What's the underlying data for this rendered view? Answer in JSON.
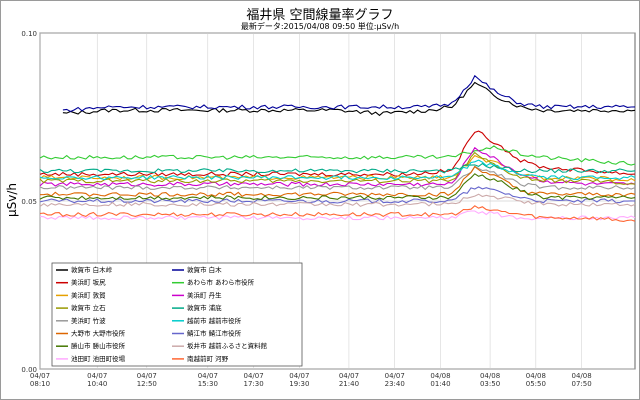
{
  "page": {
    "title": "福井県 空間線量率グラフ",
    "subtitle": "最新データ:2015/04/08 09:50 単位:μSv/h"
  },
  "chart_data": {
    "type": "line",
    "title": "福井県 空間線量率グラフ",
    "subtitle": "最新データ:2015/04/08 09:50 単位:μSv/h",
    "ylabel": "μSv/h",
    "xlabel": "",
    "ylim": [
      0,
      0.1
    ],
    "xlim_hours": [
      0,
      26
    ],
    "y_ticks": [
      "0.00",
      "0.05",
      "0.10"
    ],
    "x_ticks": [
      {
        "date": "04/07",
        "time": "08:10",
        "h": 0
      },
      {
        "date": "04/07",
        "time": "10:40",
        "h": 2.5
      },
      {
        "date": "04/07",
        "time": "12:50",
        "h": 4.667
      },
      {
        "date": "04/07",
        "time": "15:30",
        "h": 7.333
      },
      {
        "date": "04/07",
        "time": "17:30",
        "h": 9.333
      },
      {
        "date": "04/07",
        "time": "19:30",
        "h": 11.333
      },
      {
        "date": "04/07",
        "time": "21:40",
        "h": 13.5
      },
      {
        "date": "04/07",
        "time": "23:40",
        "h": 15.5
      },
      {
        "date": "04/08",
        "time": "01:40",
        "h": 17.5
      },
      {
        "date": "04/08",
        "time": "03:50",
        "h": 19.667
      },
      {
        "date": "04/08",
        "time": "05:50",
        "h": 21.667
      },
      {
        "date": "04/08",
        "time": "07:50",
        "h": 23.667
      }
    ],
    "grid": true,
    "legend_position": "bottom-left",
    "series": [
      {
        "name": "敦賀市 白木峠",
        "color": "#000000",
        "x": [
          1,
          3,
          5,
          7,
          9,
          11,
          13,
          15,
          17,
          18,
          19,
          20,
          21,
          22,
          24,
          26
        ],
        "y": [
          0.076,
          0.077,
          0.077,
          0.077,
          0.077,
          0.077,
          0.077,
          0.076,
          0.077,
          0.078,
          0.085,
          0.081,
          0.078,
          0.077,
          0.077,
          0.077
        ]
      },
      {
        "name": "敦賀市 白木",
        "color": "#000099",
        "x": [
          1,
          3,
          5,
          7,
          9,
          11,
          13,
          15,
          17,
          18,
          19,
          20,
          21,
          22,
          24,
          26
        ],
        "y": [
          0.077,
          0.078,
          0.078,
          0.078,
          0.078,
          0.078,
          0.078,
          0.078,
          0.078,
          0.079,
          0.087,
          0.082,
          0.079,
          0.078,
          0.078,
          0.078
        ]
      },
      {
        "name": "美浜町 坂尻",
        "color": "#cc0000",
        "x": [
          0,
          4,
          8,
          12,
          16,
          18,
          19,
          20,
          21,
          22,
          24,
          26
        ],
        "y": [
          0.058,
          0.058,
          0.058,
          0.058,
          0.058,
          0.059,
          0.071,
          0.067,
          0.062,
          0.06,
          0.059,
          0.058
        ]
      },
      {
        "name": "あわら市 あわら市役所",
        "color": "#33cc33",
        "x": [
          0,
          4,
          8,
          12,
          16,
          18,
          19,
          20,
          21,
          22,
          24,
          26
        ],
        "y": [
          0.063,
          0.063,
          0.063,
          0.063,
          0.063,
          0.063,
          0.065,
          0.066,
          0.064,
          0.063,
          0.062,
          0.061
        ]
      },
      {
        "name": "美浜町 敦賀",
        "color": "#e6a000",
        "x": [
          0,
          4,
          8,
          12,
          16,
          18,
          19,
          20,
          21,
          22,
          24,
          26
        ],
        "y": [
          0.057,
          0.057,
          0.057,
          0.057,
          0.057,
          0.057,
          0.063,
          0.061,
          0.058,
          0.057,
          0.057,
          0.056
        ]
      },
      {
        "name": "美浜町 丹生",
        "color": "#cc00cc",
        "x": [
          0,
          4,
          8,
          12,
          16,
          18,
          19,
          20,
          21,
          22,
          24,
          26
        ],
        "y": [
          0.055,
          0.055,
          0.055,
          0.055,
          0.055,
          0.055,
          0.066,
          0.062,
          0.058,
          0.056,
          0.055,
          0.055
        ]
      },
      {
        "name": "敦賀市 立石",
        "color": "#999900",
        "x": [
          0,
          4,
          8,
          12,
          16,
          18,
          19,
          20,
          21,
          22,
          24,
          26
        ],
        "y": [
          0.056,
          0.056,
          0.056,
          0.056,
          0.056,
          0.056,
          0.064,
          0.06,
          0.057,
          0.056,
          0.056,
          0.055
        ]
      },
      {
        "name": "敦賀市 浦底",
        "color": "#00aa88",
        "x": [
          0,
          4,
          8,
          12,
          16,
          18,
          19,
          20,
          21,
          22,
          24,
          26
        ],
        "y": [
          0.059,
          0.059,
          0.059,
          0.059,
          0.059,
          0.059,
          0.061,
          0.06,
          0.059,
          0.059,
          0.059,
          0.059
        ]
      },
      {
        "name": "美浜町 竹波",
        "color": "#999999",
        "x": [
          0,
          4,
          8,
          12,
          16,
          18,
          19,
          20,
          21,
          22,
          24,
          26
        ],
        "y": [
          0.054,
          0.054,
          0.054,
          0.054,
          0.054,
          0.054,
          0.06,
          0.058,
          0.055,
          0.054,
          0.054,
          0.054
        ]
      },
      {
        "name": "越前市 越前市役所",
        "color": "#00cccc",
        "x": [
          0,
          4,
          8,
          12,
          16,
          18,
          19,
          20,
          21,
          22,
          24,
          26
        ],
        "y": [
          0.057,
          0.057,
          0.057,
          0.057,
          0.057,
          0.057,
          0.062,
          0.06,
          0.058,
          0.057,
          0.057,
          0.057
        ]
      },
      {
        "name": "大野市 大野市役所",
        "color": "#dd6600",
        "x": [
          0,
          4,
          8,
          12,
          16,
          18,
          19,
          20,
          21,
          22,
          24,
          26
        ],
        "y": [
          0.052,
          0.052,
          0.052,
          0.052,
          0.052,
          0.052,
          0.06,
          0.057,
          0.053,
          0.052,
          0.052,
          0.052
        ]
      },
      {
        "name": "鯖江市 鯖江市役所",
        "color": "#6666cc",
        "x": [
          0,
          4,
          8,
          12,
          16,
          18,
          19,
          20,
          21,
          22,
          24,
          26
        ],
        "y": [
          0.05,
          0.05,
          0.05,
          0.05,
          0.05,
          0.05,
          0.054,
          0.053,
          0.051,
          0.05,
          0.05,
          0.05
        ]
      },
      {
        "name": "勝山市 勝山市役所",
        "color": "#447700",
        "x": [
          0,
          4,
          8,
          12,
          16,
          18,
          19,
          20,
          21,
          22,
          24,
          26
        ],
        "y": [
          0.051,
          0.051,
          0.051,
          0.051,
          0.051,
          0.051,
          0.058,
          0.056,
          0.053,
          0.051,
          0.051,
          0.051
        ]
      },
      {
        "name": "坂井市 越前ふるさと資料館",
        "color": "#ccaaaa",
        "x": [
          0,
          4,
          8,
          12,
          16,
          18,
          19,
          20,
          21,
          22,
          24,
          26
        ],
        "y": [
          0.049,
          0.049,
          0.049,
          0.049,
          0.049,
          0.049,
          0.052,
          0.051,
          0.05,
          0.049,
          0.049,
          0.049
        ]
      },
      {
        "name": "池田町 池田町役場",
        "color": "#ffaaff",
        "x": [
          0,
          4,
          8,
          12,
          16,
          18,
          19,
          20,
          21,
          22,
          24,
          26
        ],
        "y": [
          0.045,
          0.045,
          0.045,
          0.045,
          0.045,
          0.045,
          0.047,
          0.046,
          0.045,
          0.045,
          0.045,
          0.045
        ]
      },
      {
        "name": "南越前町 河野",
        "color": "#ff6633",
        "x": [
          0,
          4,
          8,
          12,
          16,
          18,
          19,
          20,
          21,
          22,
          24,
          26
        ],
        "y": [
          0.046,
          0.046,
          0.046,
          0.046,
          0.046,
          0.046,
          0.048,
          0.047,
          0.046,
          0.045,
          0.045,
          0.044
        ]
      }
    ]
  }
}
